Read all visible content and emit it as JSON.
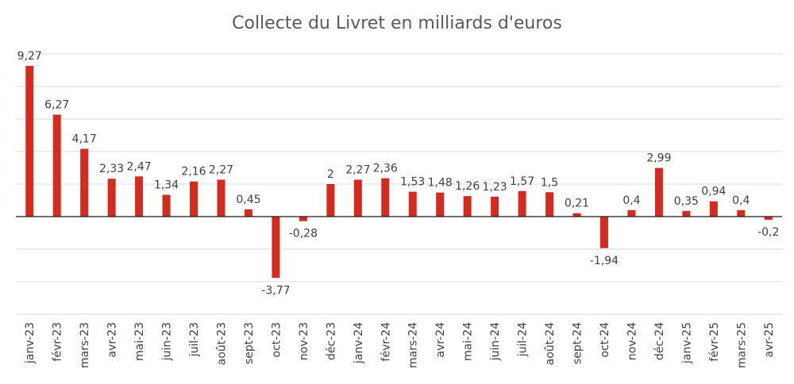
{
  "chart_data": {
    "type": "bar",
    "title": "Collecte du Livret en milliards d'euros",
    "xlabel": "",
    "ylabel": "",
    "ylim": [
      -6,
      10
    ],
    "y_ticks": [
      -6,
      -4,
      -2,
      0,
      2,
      4,
      6,
      8,
      10
    ],
    "y_tick_labels_visible": false,
    "grid": "horizontal",
    "legend": "none",
    "bar_color": "#d52b1e",
    "categories": [
      "janv-23",
      "févr-23",
      "mars-23",
      "avr-23",
      "mai-23",
      "juin-23",
      "juil-23",
      "août-23",
      "sept-23",
      "oct-23",
      "nov-23",
      "déc-23",
      "janv-24",
      "févr-24",
      "mars-24",
      "avr-24",
      "mai-24",
      "juin-24",
      "juil-24",
      "août-24",
      "sept-24",
      "oct-24",
      "nov-24",
      "déc-24",
      "janv-25",
      "févr-25",
      "mars-25",
      "avr-25"
    ],
    "values": [
      9.27,
      6.27,
      4.17,
      2.33,
      2.47,
      1.34,
      2.16,
      2.27,
      0.45,
      -3.77,
      -0.28,
      2,
      2.27,
      2.36,
      1.53,
      1.48,
      1.26,
      1.23,
      1.57,
      1.5,
      0.21,
      -1.94,
      0.4,
      2.99,
      0.35,
      0.94,
      0.4,
      -0.2
    ],
    "value_labels": [
      "9,27",
      "6,27",
      "4,17",
      "2,33",
      "2,47",
      "1,34",
      "2,16",
      "2,27",
      "0,45",
      "-3,77",
      "-0,28",
      "2",
      "2,27",
      "2,36",
      "1,53",
      "1,48",
      "1,26",
      "1,23",
      "1,57",
      "1,5",
      "0,21",
      "-1,94",
      "0,4",
      "2,99",
      "0,35",
      "0,94",
      "0,4",
      "-0,2"
    ]
  }
}
